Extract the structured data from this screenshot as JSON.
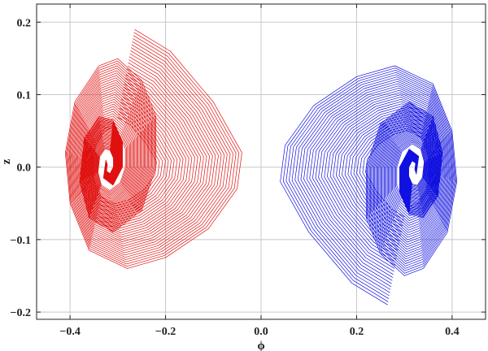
{
  "chart_data": {
    "type": "line",
    "title": "",
    "xlabel": "ϕ",
    "ylabel": "z",
    "xlim": [
      -0.47,
      0.47
    ],
    "ylim": [
      -0.21,
      0.225
    ],
    "grid": true,
    "legend": "none",
    "x_ticks": [
      -0.4,
      -0.2,
      0.0,
      0.2,
      0.4
    ],
    "x_tick_labels": [
      "−0.4",
      "−0.2",
      "0.0",
      "0.2",
      "0.4"
    ],
    "y_ticks": [
      -0.2,
      -0.1,
      0.0,
      0.1,
      0.2
    ],
    "y_tick_labels": [
      "−0.2",
      "−0.1",
      "0.0",
      "0.1",
      "0.2"
    ],
    "series": [
      {
        "color": "#e01010",
        "center": [
          -0.32,
          0.0
        ],
        "start": [
          -0.265,
          0.19
        ],
        "turns": 30,
        "points": [
          [
            -0.265,
            0.19
          ],
          [
            -0.19,
            0.16
          ],
          [
            -0.1,
            0.09
          ],
          [
            -0.04,
            0.02
          ],
          [
            -0.05,
            -0.03
          ],
          [
            -0.11,
            -0.085
          ],
          [
            -0.2,
            -0.125
          ],
          [
            -0.28,
            -0.14
          ],
          [
            -0.36,
            -0.115
          ],
          [
            -0.4,
            -0.05
          ],
          [
            -0.41,
            0.02
          ],
          [
            -0.39,
            0.09
          ],
          [
            -0.34,
            0.14
          ],
          [
            -0.3,
            0.15
          ],
          [
            -0.25,
            0.12
          ],
          [
            -0.22,
            0.07
          ],
          [
            -0.22,
            0.0
          ],
          [
            -0.25,
            -0.06
          ],
          [
            -0.31,
            -0.09
          ],
          [
            -0.36,
            -0.07
          ],
          [
            -0.38,
            -0.02
          ],
          [
            -0.37,
            0.04
          ],
          [
            -0.34,
            0.07
          ],
          [
            -0.31,
            0.065
          ],
          [
            -0.29,
            0.035
          ],
          [
            -0.29,
            0.0
          ],
          [
            -0.31,
            -0.025
          ],
          [
            -0.33,
            -0.015
          ],
          [
            -0.325,
            0.01
          ]
        ]
      },
      {
        "color": "#1010e0",
        "center": [
          0.32,
          0.0
        ],
        "start": [
          0.265,
          -0.19
        ],
        "turns": 30,
        "points": [
          [
            0.265,
            -0.19
          ],
          [
            0.19,
            -0.16
          ],
          [
            0.1,
            -0.09
          ],
          [
            0.04,
            -0.02
          ],
          [
            0.05,
            0.03
          ],
          [
            0.11,
            0.085
          ],
          [
            0.2,
            0.125
          ],
          [
            0.28,
            0.14
          ],
          [
            0.36,
            0.115
          ],
          [
            0.4,
            0.05
          ],
          [
            0.41,
            -0.02
          ],
          [
            0.39,
            -0.09
          ],
          [
            0.34,
            -0.14
          ],
          [
            0.3,
            -0.15
          ],
          [
            0.25,
            -0.12
          ],
          [
            0.22,
            -0.07
          ],
          [
            0.22,
            0.0
          ],
          [
            0.25,
            0.06
          ],
          [
            0.31,
            0.09
          ],
          [
            0.36,
            0.07
          ],
          [
            0.38,
            0.02
          ],
          [
            0.37,
            -0.04
          ],
          [
            0.34,
            -0.07
          ],
          [
            0.31,
            -0.065
          ],
          [
            0.29,
            -0.035
          ],
          [
            0.29,
            0.0
          ],
          [
            0.31,
            0.025
          ],
          [
            0.33,
            0.015
          ],
          [
            0.325,
            -0.01
          ]
        ]
      }
    ]
  }
}
